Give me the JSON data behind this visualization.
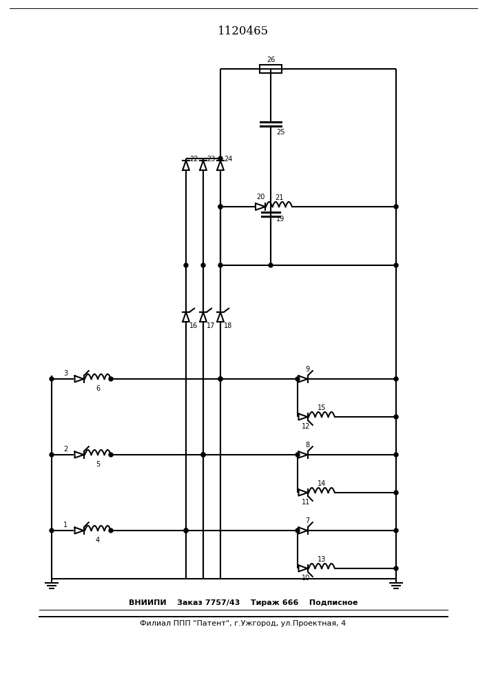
{
  "title": "1120465",
  "footer_line1": "ВНИИПИ    Заказ 7757/43    Тираж 666    Подписное",
  "footer_line2": "Филиал ППП \"Патент\", г.Ужгород, ул.Проектная, 4",
  "bg_color": "#ffffff",
  "line_color": "#000000",
  "lw": 1.5
}
